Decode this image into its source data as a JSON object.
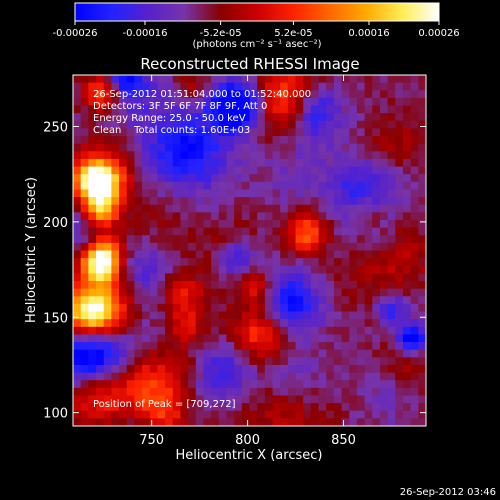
{
  "colorbar": {
    "ticks": [
      -0.00026,
      -0.00016,
      -5.2e-05,
      5.2e-05,
      0.00016,
      0.00026
    ],
    "tick_labels": [
      "-0.00026",
      "-0.00016",
      "-5.2e-05",
      "5.2e-05",
      "0.00016",
      "0.00026"
    ],
    "units": "(photons cm⁻² s⁻¹ asec⁻²)",
    "range": [
      -0.00026,
      0.00026
    ],
    "colors": [
      "#0000ff",
      "#2222ff",
      "#5522cc",
      "#7733aa",
      "#880000",
      "#cc0000",
      "#ff2200",
      "#ff6600",
      "#ffaa00",
      "#ffee55",
      "#ffffff"
    ]
  },
  "chart_data": {
    "type": "heatmap",
    "title": "Reconstructed RHESSI Image",
    "xlabel": "Heliocentric X (arcsec)",
    "ylabel": "Heliocentric Y (arcsec)",
    "xlim": [
      709,
      893
    ],
    "ylim": [
      93,
      277
    ],
    "x_ticks": [
      750,
      800,
      850
    ],
    "y_ticks": [
      100,
      150,
      200,
      250
    ],
    "info_lines": [
      "26-Sep-2012 01:51:04.000 to 01:52:40.000",
      "Detectors: 3F 5F 6F 7F 8F 9F, Att 0",
      "Energy Range: 25.0 - 50.0 keV",
      "Clean    Total counts: 1.60E+03"
    ],
    "peak_label": "Position of Peak = [709,272]",
    "peak_position": [
      709,
      272
    ],
    "grid_size": [
      46,
      46
    ],
    "seed": 20120926
  },
  "footer": {
    "timestamp": "26-Sep-2012 03:46"
  }
}
